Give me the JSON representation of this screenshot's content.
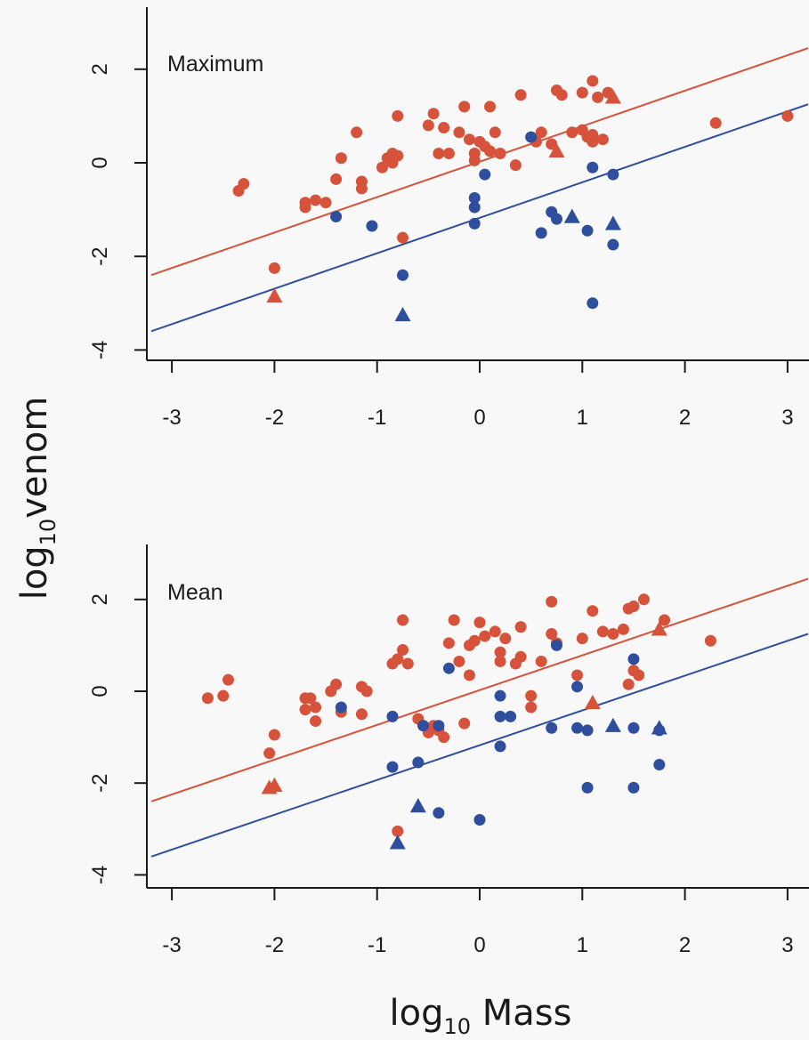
{
  "colors": {
    "red": "#d6523a",
    "blue": "#2f4f9e",
    "axis": "#1a1a1a"
  },
  "chart_data": {
    "type": "scatter",
    "xlabel_main": "log",
    "xlabel_sub": "10",
    "xlabel_rest": " Mass",
    "ylabel_main": "log",
    "ylabel_sub": "10",
    "ylabel_rest": "venom",
    "xticks": [
      -3,
      -2,
      -1,
      0,
      1,
      2,
      3
    ],
    "xtick_labels": [
      "-3",
      "-2",
      "-1",
      "0",
      "1",
      "2",
      "3"
    ],
    "yticks": [
      -4,
      -2,
      0,
      2
    ],
    "ytick_labels": [
      "-4",
      "-2",
      "0",
      "2"
    ],
    "xlim": [
      -3.2,
      3.2
    ],
    "ylim": [
      -4.2,
      3.2
    ],
    "panels": [
      {
        "title": "Maximum",
        "lines": [
          {
            "color": "red",
            "x": [
              -3.2,
              3.2
            ],
            "y": [
              -2.4,
              2.45
            ]
          },
          {
            "color": "blue",
            "x": [
              -3.2,
              3.2
            ],
            "y": [
              -3.6,
              1.25
            ]
          }
        ],
        "red_circles": [
          [
            -2.35,
            -0.6
          ],
          [
            -2.3,
            -0.45
          ],
          [
            -2.0,
            -2.25
          ],
          [
            -1.7,
            -0.85
          ],
          [
            -1.7,
            -0.95
          ],
          [
            -1.6,
            -0.8
          ],
          [
            -1.5,
            -0.85
          ],
          [
            -1.4,
            -0.35
          ],
          [
            -1.35,
            0.1
          ],
          [
            -1.2,
            0.65
          ],
          [
            -1.15,
            -0.4
          ],
          [
            -1.15,
            -0.55
          ],
          [
            -0.95,
            -0.1
          ],
          [
            -0.9,
            0.1
          ],
          [
            -0.85,
            0.0
          ],
          [
            -0.85,
            0.2
          ],
          [
            -0.8,
            0.15
          ],
          [
            -0.8,
            1.0
          ],
          [
            -0.75,
            -1.6
          ],
          [
            -0.5,
            0.8
          ],
          [
            -0.45,
            1.05
          ],
          [
            -0.4,
            0.2
          ],
          [
            -0.35,
            0.75
          ],
          [
            -0.3,
            0.2
          ],
          [
            -0.2,
            0.65
          ],
          [
            -0.15,
            1.2
          ],
          [
            -0.1,
            0.5
          ],
          [
            -0.05,
            0.05
          ],
          [
            -0.05,
            0.2
          ],
          [
            0.0,
            0.45
          ],
          [
            0.05,
            0.35
          ],
          [
            0.1,
            1.2
          ],
          [
            0.1,
            0.25
          ],
          [
            0.15,
            0.65
          ],
          [
            0.2,
            0.2
          ],
          [
            0.35,
            -0.05
          ],
          [
            0.4,
            1.45
          ],
          [
            0.55,
            0.45
          ],
          [
            0.6,
            0.65
          ],
          [
            0.7,
            0.4
          ],
          [
            0.75,
            1.55
          ],
          [
            0.8,
            1.45
          ],
          [
            0.9,
            0.65
          ],
          [
            1.0,
            1.5
          ],
          [
            1.0,
            0.7
          ],
          [
            1.05,
            0.55
          ],
          [
            1.1,
            0.6
          ],
          [
            1.1,
            0.45
          ],
          [
            1.1,
            1.75
          ],
          [
            1.15,
            1.4
          ],
          [
            1.2,
            0.5
          ],
          [
            1.25,
            1.5
          ],
          [
            2.3,
            0.85
          ],
          [
            3.0,
            1.0
          ]
        ],
        "red_triangles": [
          [
            -2.0,
            -2.85
          ],
          [
            0.75,
            0.25
          ],
          [
            1.3,
            1.4
          ]
        ],
        "blue_circles": [
          [
            -1.4,
            -1.15
          ],
          [
            -1.05,
            -1.35
          ],
          [
            -0.75,
            -2.4
          ],
          [
            -0.05,
            -0.75
          ],
          [
            -0.05,
            -0.95
          ],
          [
            -0.05,
            -1.3
          ],
          [
            0.05,
            -0.25
          ],
          [
            0.5,
            0.55
          ],
          [
            0.6,
            -1.5
          ],
          [
            0.7,
            -1.05
          ],
          [
            0.75,
            -1.2
          ],
          [
            1.05,
            -1.45
          ],
          [
            1.1,
            -0.1
          ],
          [
            1.1,
            -3.0
          ],
          [
            1.3,
            -0.25
          ],
          [
            1.3,
            -1.75
          ]
        ],
        "blue_triangles": [
          [
            -0.75,
            -3.25
          ],
          [
            0.9,
            -1.15
          ],
          [
            1.3,
            -1.3
          ]
        ]
      },
      {
        "title": "Mean",
        "lines": [
          {
            "color": "red",
            "x": [
              -3.2,
              3.2
            ],
            "y": [
              -2.4,
              2.45
            ]
          },
          {
            "color": "blue",
            "x": [
              -3.2,
              3.2
            ],
            "y": [
              -3.6,
              1.25
            ]
          }
        ],
        "red_circles": [
          [
            -2.65,
            -0.15
          ],
          [
            -2.5,
            -0.1
          ],
          [
            -2.45,
            0.25
          ],
          [
            -2.05,
            -1.35
          ],
          [
            -2.0,
            -0.95
          ],
          [
            -1.7,
            -0.15
          ],
          [
            -1.7,
            -0.4
          ],
          [
            -1.65,
            -0.15
          ],
          [
            -1.6,
            -0.65
          ],
          [
            -1.6,
            -0.35
          ],
          [
            -1.45,
            0.0
          ],
          [
            -1.4,
            0.15
          ],
          [
            -1.35,
            -0.45
          ],
          [
            -1.15,
            0.1
          ],
          [
            -1.15,
            -0.5
          ],
          [
            -1.1,
            0.0
          ],
          [
            -0.85,
            0.6
          ],
          [
            -0.8,
            0.7
          ],
          [
            -0.75,
            0.9
          ],
          [
            -0.75,
            1.55
          ],
          [
            -0.7,
            0.6
          ],
          [
            -0.6,
            -0.6
          ],
          [
            -0.55,
            -0.75
          ],
          [
            -0.5,
            -0.9
          ],
          [
            -0.45,
            -0.75
          ],
          [
            -0.4,
            -0.85
          ],
          [
            -0.35,
            -1.0
          ],
          [
            -0.3,
            1.05
          ],
          [
            -0.25,
            1.55
          ],
          [
            -0.2,
            0.65
          ],
          [
            -0.15,
            -0.7
          ],
          [
            -0.1,
            1.0
          ],
          [
            -0.1,
            0.35
          ],
          [
            -0.05,
            1.1
          ],
          [
            0.0,
            1.5
          ],
          [
            0.05,
            1.2
          ],
          [
            0.15,
            1.3
          ],
          [
            0.2,
            0.85
          ],
          [
            0.2,
            0.65
          ],
          [
            0.25,
            1.15
          ],
          [
            0.35,
            0.6
          ],
          [
            0.4,
            0.75
          ],
          [
            0.4,
            1.4
          ],
          [
            0.5,
            -0.35
          ],
          [
            0.5,
            -0.1
          ],
          [
            0.6,
            0.65
          ],
          [
            0.7,
            1.95
          ],
          [
            0.7,
            1.25
          ],
          [
            0.75,
            1.05
          ],
          [
            0.95,
            0.35
          ],
          [
            1.0,
            1.15
          ],
          [
            1.1,
            1.75
          ],
          [
            1.2,
            1.3
          ],
          [
            1.3,
            1.25
          ],
          [
            1.4,
            1.35
          ],
          [
            1.45,
            1.8
          ],
          [
            1.5,
            0.45
          ],
          [
            1.5,
            1.85
          ],
          [
            1.55,
            0.35
          ],
          [
            1.6,
            2.0
          ],
          [
            1.45,
            0.15
          ],
          [
            1.8,
            1.55
          ],
          [
            2.25,
            1.1
          ],
          [
            -0.8,
            -3.05
          ]
        ],
        "red_triangles": [
          [
            -2.05,
            -2.1
          ],
          [
            -2.0,
            -2.05
          ],
          [
            1.1,
            -0.25
          ],
          [
            1.75,
            1.35
          ]
        ],
        "blue_circles": [
          [
            -1.35,
            -0.35
          ],
          [
            -0.85,
            -0.55
          ],
          [
            -0.85,
            -1.65
          ],
          [
            -0.6,
            -1.55
          ],
          [
            -0.55,
            -0.75
          ],
          [
            -0.4,
            -0.75
          ],
          [
            -0.4,
            -2.65
          ],
          [
            -0.3,
            0.5
          ],
          [
            0.0,
            -2.8
          ],
          [
            0.2,
            -0.55
          ],
          [
            0.2,
            -1.2
          ],
          [
            0.2,
            -0.1
          ],
          [
            0.3,
            -0.55
          ],
          [
            0.7,
            -0.8
          ],
          [
            0.75,
            1.0
          ],
          [
            0.95,
            -0.8
          ],
          [
            0.95,
            0.1
          ],
          [
            1.05,
            -0.85
          ],
          [
            1.05,
            -2.1
          ],
          [
            1.5,
            -2.1
          ],
          [
            1.5,
            0.7
          ],
          [
            1.5,
            -0.8
          ],
          [
            1.75,
            -0.85
          ],
          [
            1.75,
            -1.6
          ]
        ],
        "blue_triangles": [
          [
            -0.8,
            -3.3
          ],
          [
            -0.6,
            -2.5
          ],
          [
            1.3,
            -0.75
          ],
          [
            1.75,
            -0.8
          ]
        ]
      }
    ]
  }
}
